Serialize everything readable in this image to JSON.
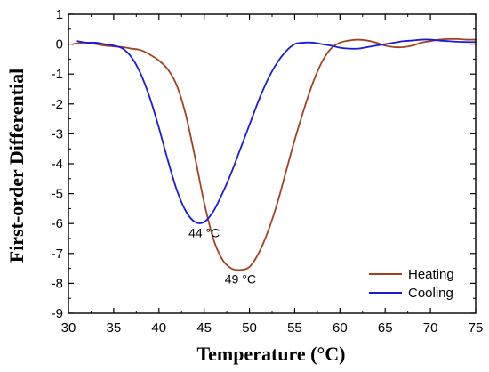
{
  "chart_data": {
    "type": "line",
    "xlabel": "Temperature (°C)",
    "ylabel": "First-order Differential",
    "xlim": [
      30,
      75
    ],
    "ylim": [
      -9,
      1
    ],
    "xticks": [
      30,
      35,
      40,
      45,
      50,
      55,
      60,
      65,
      70,
      75
    ],
    "yticks": [
      1,
      0,
      -1,
      -2,
      -3,
      -4,
      -5,
      -6,
      -7,
      -8,
      -9
    ],
    "legend_position": "bottom-right",
    "grid": false,
    "series": [
      {
        "name": "Heating",
        "color": "#a0421e",
        "x": [
          30.5,
          32,
          34,
          36,
          37,
          38,
          39,
          40,
          41,
          42,
          43,
          44,
          45,
          46,
          47,
          48,
          49,
          50,
          51,
          52,
          53,
          54,
          55,
          56,
          57,
          58,
          59,
          60,
          61,
          62,
          63,
          64,
          65,
          66,
          67,
          68,
          69,
          70,
          71,
          72,
          73,
          74,
          75
        ],
        "y": [
          0.0,
          0.05,
          -0.05,
          -0.1,
          -0.15,
          -0.2,
          -0.35,
          -0.55,
          -0.85,
          -1.4,
          -2.4,
          -3.8,
          -5.3,
          -6.5,
          -7.2,
          -7.5,
          -7.55,
          -7.45,
          -7.0,
          -6.3,
          -5.4,
          -4.3,
          -3.2,
          -2.2,
          -1.3,
          -0.6,
          -0.15,
          0.05,
          0.12,
          0.15,
          0.12,
          0.05,
          -0.05,
          -0.1,
          -0.1,
          -0.05,
          0.05,
          0.1,
          0.15,
          0.17,
          0.17,
          0.15,
          0.15
        ]
      },
      {
        "name": "Cooling",
        "color": "#1a1adb",
        "x": [
          31,
          32,
          33,
          34,
          35,
          36,
          37,
          38,
          39,
          40,
          41,
          42,
          43,
          44,
          45,
          46,
          47,
          48,
          49,
          50,
          51,
          52,
          53,
          54,
          55,
          56,
          57,
          58,
          59,
          60,
          61,
          62,
          63,
          64,
          65,
          66,
          67,
          68,
          69,
          70,
          71,
          72,
          73,
          74,
          75
        ],
        "y": [
          0.1,
          0.05,
          0.05,
          0.0,
          -0.05,
          -0.15,
          -0.45,
          -1.0,
          -1.8,
          -2.8,
          -3.9,
          -4.9,
          -5.6,
          -5.95,
          -5.95,
          -5.6,
          -5.0,
          -4.3,
          -3.5,
          -2.7,
          -1.9,
          -1.2,
          -0.65,
          -0.25,
          0.0,
          0.05,
          0.05,
          0.0,
          -0.05,
          -0.12,
          -0.15,
          -0.15,
          -0.1,
          -0.05,
          0.0,
          0.05,
          0.1,
          0.12,
          0.15,
          0.15,
          0.12,
          0.1,
          0.08,
          0.07,
          0.07
        ]
      }
    ],
    "annotations": [
      {
        "text": "44 °C",
        "x": 45,
        "y": -6.45
      },
      {
        "text": "49 °C",
        "x": 49,
        "y": -8.0
      }
    ]
  }
}
